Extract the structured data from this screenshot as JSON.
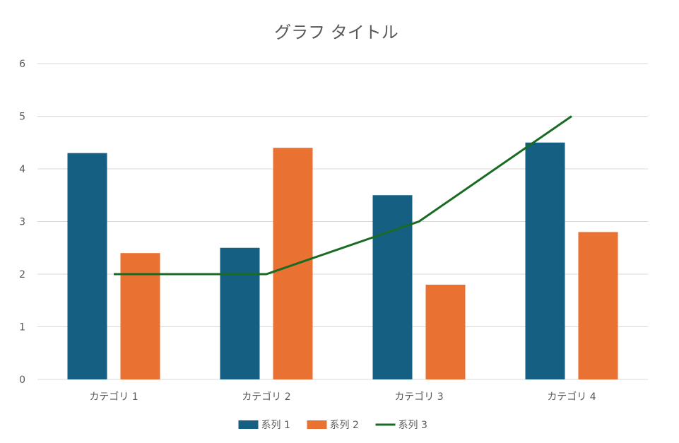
{
  "chart_data": {
    "type": "bar",
    "title": "グラフ タイトル",
    "categories": [
      "カテゴリ 1",
      "カテゴリ 2",
      "カテゴリ 3",
      "カテゴリ 4"
    ],
    "series": [
      {
        "name": "系列 1",
        "type": "bar",
        "color": "#156082",
        "values": [
          4.3,
          2.5,
          3.5,
          4.5
        ]
      },
      {
        "name": "系列 2",
        "type": "bar",
        "color": "#E97132",
        "values": [
          2.4,
          4.4,
          1.8,
          2.8
        ]
      },
      {
        "name": "系列 3",
        "type": "line",
        "color": "#196B24",
        "values": [
          2,
          2,
          3,
          5
        ]
      }
    ],
    "ylim": [
      0,
      6
    ],
    "yticks": [
      "0",
      "1",
      "2",
      "3",
      "4",
      "5",
      "6"
    ],
    "grid": true,
    "legend": "bottom"
  }
}
